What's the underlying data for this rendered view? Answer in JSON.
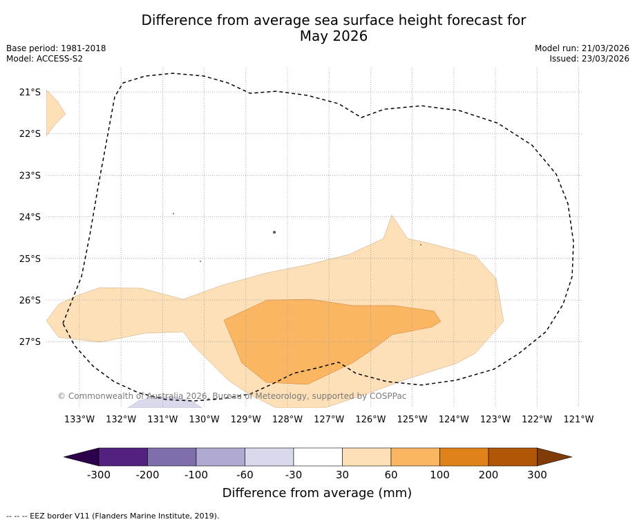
{
  "title_line1": "Difference from average sea surface height forecast for",
  "title_line2": "May 2026",
  "meta_left": {
    "base_period": "Base period: 1981-2018",
    "model": "Model: ACCESS-S2"
  },
  "meta_right": {
    "model_run": "Model run: 21/03/2026",
    "issued": "Issued: 23/03/2026"
  },
  "copyright": "© Commonwealth of Australia 2026, Bureau of Meteorology, supported by COSPPac",
  "footer": "--  --  -- EEZ border V11 (Flanders Marine Institute, 2019).",
  "chart_data": {
    "type": "heatmap",
    "title": "Difference from average sea surface height forecast for May 2026",
    "x_ticks": [
      "133°W",
      "132°W",
      "131°W",
      "130°W",
      "129°W",
      "128°W",
      "127°W",
      "126°W",
      "125°W",
      "124°W",
      "123°W",
      "122°W",
      "121°W"
    ],
    "y_ticks": [
      "21°S",
      "22°S",
      "23°S",
      "24°S",
      "25°S",
      "26°S",
      "27°S"
    ],
    "xlim": [
      -133.7,
      -120.9
    ],
    "ylim": [
      -28.6,
      -20.4
    ],
    "colorbar": {
      "label": "Difference from average (mm)",
      "tick_labels": [
        "-300",
        "-200",
        "-100",
        "-60",
        "-30",
        "30",
        "60",
        "100",
        "200",
        "300"
      ],
      "colors": [
        "#53217f",
        "#7e6fab",
        "#b0a9d1",
        "#d9d9ec",
        "#ffffff",
        "#fde0b8",
        "#fbb663",
        "#e0821a",
        "#b15506"
      ],
      "extend_low_color": "#2d004b",
      "extend_high_color": "#7f3b08"
    },
    "regions": [
      {
        "level": "30 to 60 mm",
        "color": "#fde0b8",
        "area": "broad band across 26°S from 133.5°W to 123°W"
      },
      {
        "level": "60 to 100 mm",
        "color": "#fbb663",
        "area": "core near 26.5°S, 129.5°W to 124.5°W"
      },
      {
        "level": "30 to 60 mm",
        "color": "#fde0b8",
        "area": "small patch near 21.5°S, 133.7°W"
      },
      {
        "level": "-30 to -60 mm",
        "color": "#d9d9ec",
        "area": "small patch near 28.5°S, 131°W"
      }
    ],
    "overlay": "EEZ border (dashed)"
  }
}
